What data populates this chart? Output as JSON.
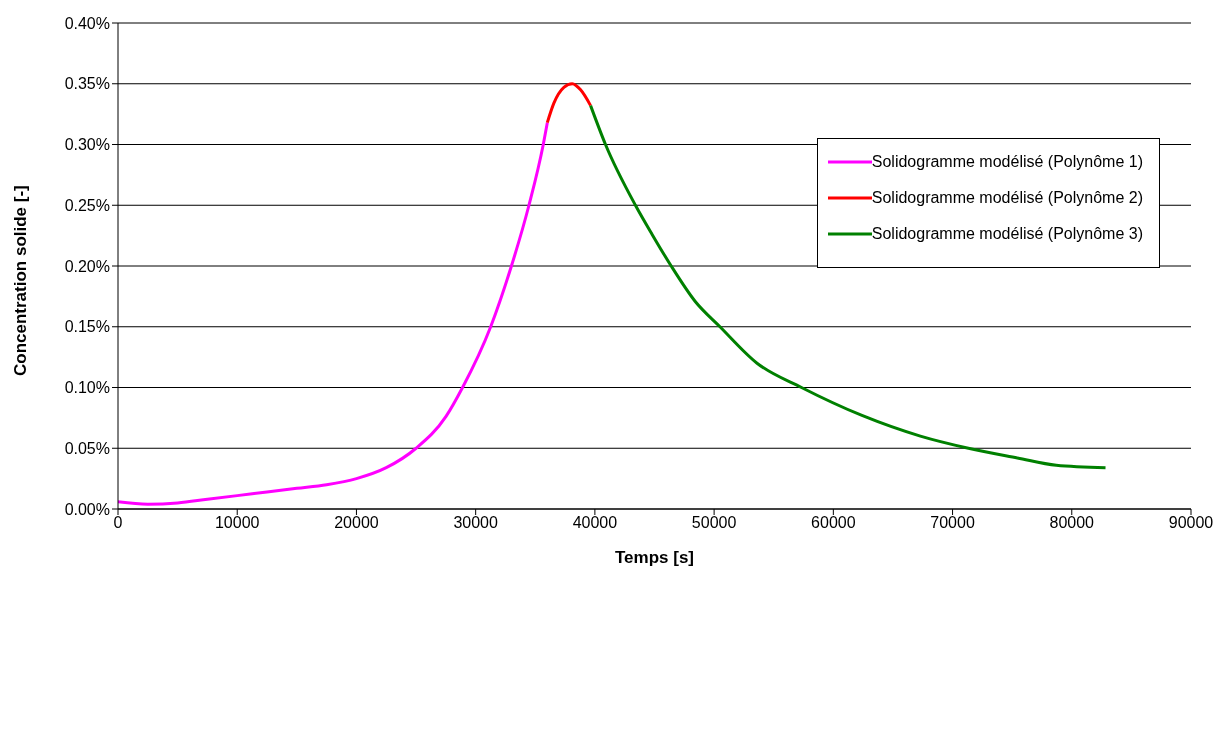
{
  "chart_data": {
    "type": "line",
    "xlabel": "Temps [s]",
    "ylabel": "Concentration solide [-]",
    "xlim": [
      0,
      90000
    ],
    "xticks": [
      0,
      10000,
      20000,
      30000,
      40000,
      50000,
      60000,
      70000,
      80000,
      90000
    ],
    "ylim": [
      0,
      0.4
    ],
    "yticks": [
      {
        "value": 0,
        "label": "0.00%"
      },
      {
        "value": 0.05,
        "label": "0.05%"
      },
      {
        "value": 0.1,
        "label": "0.10%"
      },
      {
        "value": 0.15,
        "label": "0.15%"
      },
      {
        "value": 0.2,
        "label": "0.20%"
      },
      {
        "value": 0.25,
        "label": "0.25%"
      },
      {
        "value": 0.3,
        "label": "0.30%"
      },
      {
        "value": 0.35,
        "label": "0.35%"
      },
      {
        "value": 0.4,
        "label": "0.40%"
      }
    ],
    "grid": "y",
    "legend": "top right",
    "marker": "none",
    "line_style": "solid",
    "series": [
      {
        "name": "Solidogramme modélisé (Polynôme 1)",
        "color": "#ff00ff",
        "x": [
          0,
          2500,
          5000,
          7500,
          10000,
          12500,
          15000,
          17500,
          20000,
          22500,
          25000,
          27500,
          28900,
          31260,
          33000,
          34470,
          35670,
          36010
        ],
        "values": [
          0.006,
          0.004,
          0.005,
          0.008,
          0.011,
          0.014,
          0.017,
          0.02,
          0.025,
          0.034,
          0.05,
          0.076,
          0.1,
          0.15,
          0.2,
          0.25,
          0.3,
          0.318
        ]
      },
      {
        "name": "Solidogramme modélisé (Polynôme 2)",
        "color": "#ff0000",
        "x": [
          36010,
          36560,
          37400,
          38100,
          38800,
          39640
        ],
        "values": [
          0.318,
          0.334,
          0.347,
          0.35,
          0.345,
          0.332
        ]
      },
      {
        "name": "Solidogramme modélisé (Polynôme 3)",
        "color": "#008000",
        "x": [
          39640,
          40890,
          43400,
          44800,
          46400,
          48400,
          50490,
          53600,
          57330,
          62400,
          67300,
          71330,
          75440,
          78700,
          82830
        ],
        "values": [
          0.332,
          0.3,
          0.25,
          0.226,
          0.2,
          0.171,
          0.15,
          0.12,
          0.1,
          0.077,
          0.06,
          0.05,
          0.042,
          0.036,
          0.034
        ]
      }
    ]
  }
}
